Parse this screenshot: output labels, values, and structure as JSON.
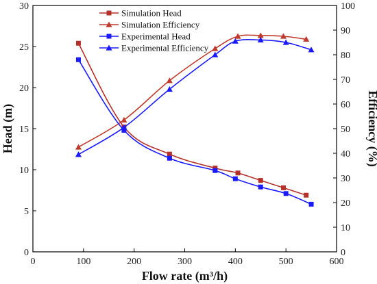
{
  "chart_data": {
    "type": "line",
    "x_axis": {
      "label": "Flow rate (m³/h)",
      "range": [
        0,
        600
      ],
      "ticks": [
        0,
        100,
        200,
        300,
        400,
        500,
        600
      ]
    },
    "y_left": {
      "label": "Head (m)",
      "range": [
        0,
        30
      ],
      "ticks": [
        0,
        5,
        10,
        15,
        20,
        25,
        30
      ]
    },
    "y_right": {
      "label": "Efficiency (%)",
      "range": [
        0,
        100
      ],
      "ticks": [
        0,
        10,
        20,
        30,
        40,
        50,
        60,
        70,
        80,
        90,
        100
      ]
    },
    "grid": false,
    "legend_position": "top-center",
    "series": [
      {
        "name": "Simulation Head",
        "axis": "left",
        "color": "#b5302a",
        "marker": "square",
        "points": [
          [
            90,
            25.4
          ],
          [
            180,
            15.2
          ],
          [
            270,
            11.9
          ],
          [
            360,
            10.2
          ],
          [
            405,
            9.6
          ],
          [
            450,
            8.7
          ],
          [
            495,
            7.8
          ],
          [
            540,
            6.9
          ]
        ]
      },
      {
        "name": "Simulation Efficiency",
        "axis": "right",
        "color": "#c0392b",
        "marker": "triangle",
        "points": [
          [
            90,
            42.5
          ],
          [
            180,
            53.5
          ],
          [
            270,
            69.5
          ],
          [
            360,
            82.5
          ],
          [
            405,
            87.5
          ],
          [
            450,
            87.8
          ],
          [
            495,
            87.5
          ],
          [
            540,
            86.3
          ]
        ]
      },
      {
        "name": "Experimental Head",
        "axis": "left",
        "color": "#1a1aff",
        "marker": "square",
        "points": [
          [
            90,
            23.4
          ],
          [
            180,
            14.8
          ],
          [
            270,
            11.4
          ],
          [
            360,
            9.9
          ],
          [
            400,
            8.9
          ],
          [
            450,
            7.9
          ],
          [
            500,
            7.1
          ],
          [
            550,
            5.8
          ]
        ]
      },
      {
        "name": "Experimental Efficiency",
        "axis": "right",
        "color": "#1a1aff",
        "marker": "triangle",
        "points": [
          [
            90,
            39.5
          ],
          [
            180,
            50.5
          ],
          [
            270,
            66
          ],
          [
            360,
            80
          ],
          [
            400,
            85.5
          ],
          [
            450,
            86
          ],
          [
            500,
            85
          ],
          [
            550,
            82
          ]
        ]
      }
    ]
  }
}
